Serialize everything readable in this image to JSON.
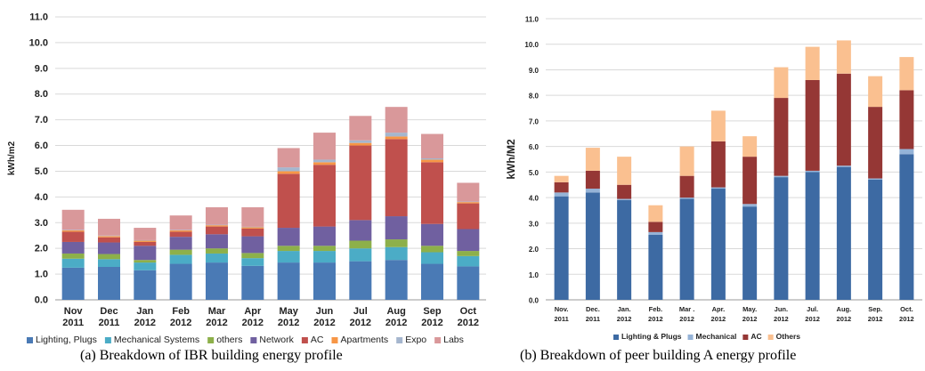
{
  "chart_data": [
    {
      "type": "bar",
      "stacked": true,
      "ylabel": "kWh/m2",
      "ylim": [
        0,
        11
      ],
      "yticks": [
        "0.0",
        "1.0",
        "2.0",
        "3.0",
        "4.0",
        "5.0",
        "6.0",
        "7.0",
        "8.0",
        "9.0",
        "10.0",
        "11.0"
      ],
      "grid": true,
      "legend_position": "bottom",
      "categories": [
        [
          "Nov",
          "2011"
        ],
        [
          "Dec",
          "2011"
        ],
        [
          "Jan",
          "2012"
        ],
        [
          "Feb",
          "2012"
        ],
        [
          "Mar",
          "2012"
        ],
        [
          "Apr",
          "2012"
        ],
        [
          "May",
          "2012"
        ],
        [
          "Jun",
          "2012"
        ],
        [
          "Jul",
          "2012"
        ],
        [
          "Aug",
          "2012"
        ],
        [
          "Sep",
          "2012"
        ],
        [
          "Oct",
          "2012"
        ]
      ],
      "series": [
        {
          "name": "Lighting, Plugs",
          "color": "#4a7ab5",
          "values": [
            1.25,
            1.28,
            1.15,
            1.4,
            1.45,
            1.32,
            1.45,
            1.45,
            1.5,
            1.55,
            1.4,
            1.3
          ]
        },
        {
          "name": "Mechanical Systems",
          "color": "#4bacc6",
          "values": [
            0.35,
            0.3,
            0.3,
            0.35,
            0.35,
            0.3,
            0.45,
            0.45,
            0.5,
            0.5,
            0.45,
            0.4
          ]
        },
        {
          "name": "others",
          "color": "#8db04a",
          "values": [
            0.2,
            0.2,
            0.1,
            0.2,
            0.2,
            0.2,
            0.2,
            0.2,
            0.3,
            0.3,
            0.25,
            0.2
          ]
        },
        {
          "name": "Network",
          "color": "#7060a0",
          "values": [
            0.45,
            0.45,
            0.55,
            0.5,
            0.55,
            0.65,
            0.7,
            0.75,
            0.8,
            0.9,
            0.85,
            0.85
          ]
        },
        {
          "name": "AC",
          "color": "#c0504d",
          "values": [
            0.4,
            0.2,
            0.15,
            0.2,
            0.3,
            0.3,
            2.1,
            2.4,
            2.9,
            3.0,
            2.4,
            1.0
          ]
        },
        {
          "name": "Apartments",
          "color": "#f79646",
          "values": [
            0.05,
            0.05,
            0.05,
            0.05,
            0.05,
            0.05,
            0.1,
            0.1,
            0.1,
            0.1,
            0.1,
            0.05
          ]
        },
        {
          "name": "Expo",
          "color": "#a5b6ce",
          "values": [
            0.02,
            0.02,
            0.02,
            0.02,
            0.02,
            0.02,
            0.15,
            0.1,
            0.1,
            0.15,
            0.05,
            0.02
          ]
        },
        {
          "name": "Labs",
          "color": "#d9989a",
          "values": [
            0.78,
            0.65,
            0.48,
            0.56,
            0.68,
            0.76,
            0.75,
            1.05,
            0.95,
            1.0,
            0.95,
            0.73
          ]
        }
      ]
    },
    {
      "type": "bar",
      "stacked": true,
      "ylabel": "kWh/M2",
      "ylim": [
        0,
        11
      ],
      "yticks": [
        "0.0",
        "1.0",
        "2.0",
        "3.0",
        "4.0",
        "5.0",
        "6.0",
        "7.0",
        "8.0",
        "9.0",
        "10.0",
        "11.0"
      ],
      "grid": true,
      "legend_position": "bottom",
      "categories": [
        [
          "Nov.",
          "2011"
        ],
        [
          "Dec.",
          "2011"
        ],
        [
          "Jan.",
          "2012"
        ],
        [
          "Feb.",
          "2012"
        ],
        [
          "Mar .",
          "2012"
        ],
        [
          "Apr.",
          "2012"
        ],
        [
          "May.",
          "2012"
        ],
        [
          "Jun.",
          "2012"
        ],
        [
          "Jul.",
          "2012"
        ],
        [
          "Aug.",
          "2012"
        ],
        [
          "Sep.",
          "2012"
        ],
        [
          "Oct.",
          "2012"
        ]
      ],
      "series": [
        {
          "name": "Lighting & Plugs",
          "color": "#3d6aa3",
          "values": [
            4.05,
            4.2,
            3.9,
            2.55,
            3.95,
            4.35,
            3.65,
            4.8,
            5.0,
            5.2,
            4.7,
            5.7
          ]
        },
        {
          "name": "Mechanical",
          "color": "#95b3d7",
          "values": [
            0.15,
            0.15,
            0.05,
            0.1,
            0.05,
            0.05,
            0.1,
            0.05,
            0.05,
            0.05,
            0.05,
            0.2
          ]
        },
        {
          "name": "AC",
          "color": "#953735",
          "values": [
            0.4,
            0.7,
            0.55,
            0.4,
            0.85,
            1.8,
            1.85,
            3.05,
            3.55,
            3.6,
            2.8,
            2.3
          ]
        },
        {
          "name": "Others",
          "color": "#fac090",
          "values": [
            0.25,
            0.9,
            1.1,
            0.65,
            1.15,
            1.2,
            0.8,
            1.2,
            1.3,
            1.3,
            1.2,
            1.3
          ]
        }
      ]
    }
  ],
  "captions": {
    "a": "(a)    Breakdown of IBR building energy profile",
    "b": "(b)  Breakdown of peer building A energy profile"
  }
}
